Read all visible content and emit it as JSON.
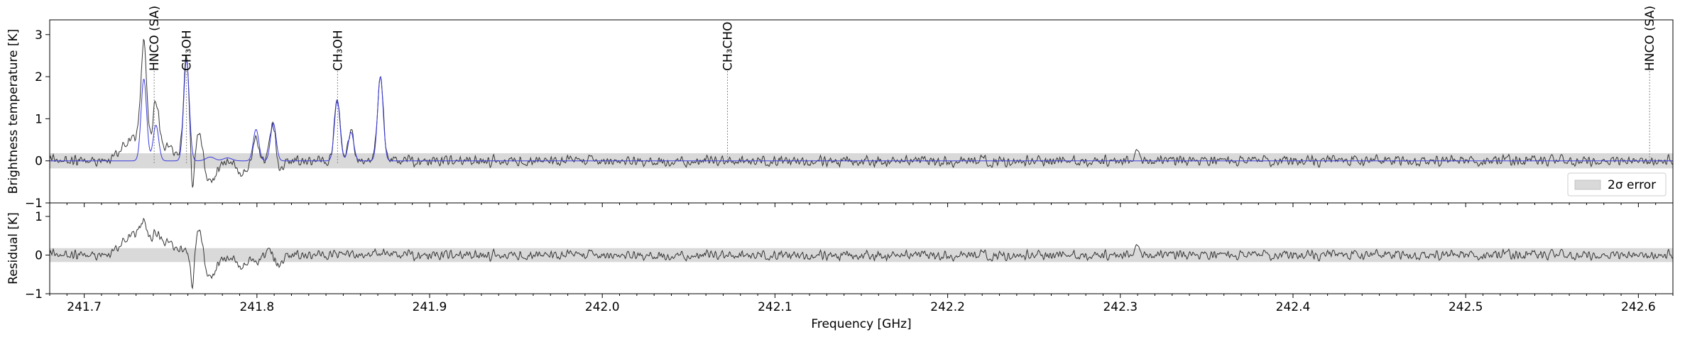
{
  "chart_data": [
    {
      "type": "line",
      "panel": "spectrum",
      "xlim": [
        241.68,
        242.62
      ],
      "ylim": [
        -1.0,
        3.35
      ],
      "ylabel": "Brightness temperature [K]",
      "yticks": [
        -1,
        0,
        1,
        2,
        3
      ],
      "grid": false,
      "error_band": {
        "lower": -0.18,
        "upper": 0.18,
        "color": "#d9d9d9"
      },
      "legend": {
        "position": "lower-right",
        "entries": [
          "2σ error"
        ]
      },
      "annotations": [
        {
          "label": "HNCO (SA)",
          "x": 241.7405
        },
        {
          "label": "CH₃OH",
          "x": 241.7592
        },
        {
          "label": "CH₃OH",
          "x": 241.8467
        },
        {
          "label": "CH₃CHO",
          "x": 242.0725
        },
        {
          "label": "HNCO (SA)",
          "x": 242.6065
        }
      ],
      "lines": [
        {
          "center": 241.7345,
          "observed_peak": 2.5,
          "model_peak": 1.95
        },
        {
          "center": 241.7415,
          "observed_peak": 1.25,
          "model_peak": 0.85
        },
        {
          "center": 241.7592,
          "observed_peak": 2.45,
          "model_peak": 2.4
        },
        {
          "center": 241.7665,
          "observed_peak": 0.75,
          "model_peak": 0.0
        },
        {
          "center": 241.7995,
          "observed_peak": 0.55,
          "model_peak": 0.75
        },
        {
          "center": 241.8095,
          "observed_peak": 0.95,
          "model_peak": 0.9
        },
        {
          "center": 241.8465,
          "observed_peak": 1.45,
          "model_peak": 1.45
        },
        {
          "center": 241.8545,
          "observed_peak": 0.68,
          "model_peak": 0.68
        },
        {
          "center": 241.8715,
          "observed_peak": 2.05,
          "model_peak": 2.0
        }
      ],
      "series": [
        {
          "color": "#333333"
        },
        {
          "color": "#3a3adf"
        }
      ]
    },
    {
      "type": "line",
      "panel": "residual",
      "xlim": [
        241.68,
        242.62
      ],
      "ylim": [
        -1.0,
        1.35
      ],
      "ylabel": "Residual [K]",
      "xlabel": "Frequency [GHz]",
      "yticks": [
        -1,
        0,
        1
      ],
      "xticks": [
        241.7,
        241.8,
        241.9,
        242.0,
        242.1,
        242.2,
        242.3,
        242.4,
        242.5,
        242.6
      ],
      "xtick_labels": [
        "241.7",
        "241.8",
        "241.9",
        "242.0",
        "242.1",
        "242.2",
        "242.3",
        "242.4",
        "242.5",
        "242.6"
      ],
      "error_band": {
        "lower": -0.18,
        "upper": 0.18,
        "color": "#d9d9d9"
      },
      "series": [
        {
          "color": "#333333"
        }
      ]
    }
  ]
}
